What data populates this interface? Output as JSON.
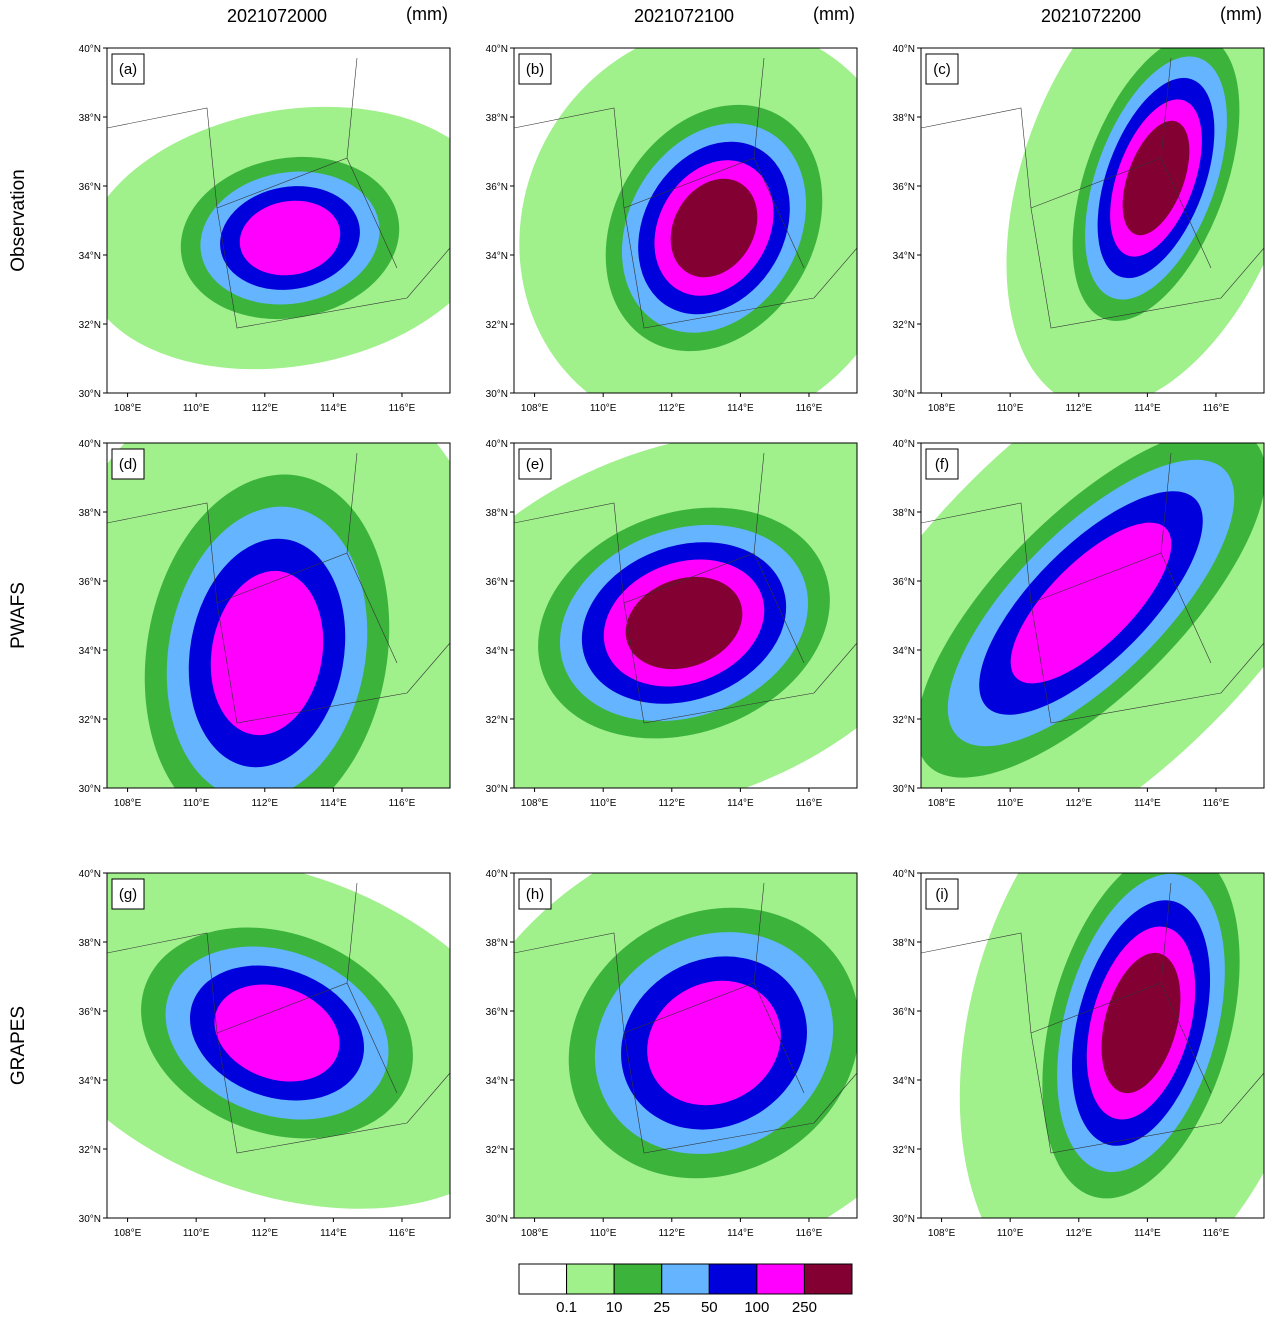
{
  "columns": [
    "2021072000",
    "2021072100",
    "2021072200"
  ],
  "unit": "(mm)",
  "rows": [
    "Observation",
    "PWAFS",
    "GRAPES"
  ],
  "panels": [
    "(a)",
    "(b)",
    "(c)",
    "(d)",
    "(e)",
    "(f)",
    "(g)",
    "(h)",
    "(i)"
  ],
  "lat_range": [
    30,
    40
  ],
  "lon_range": [
    107.4,
    117.4
  ],
  "lat_ticks": [
    {
      "value": 30,
      "label": "30°N"
    },
    {
      "value": 32,
      "label": "32°N"
    },
    {
      "value": 34,
      "label": "34°N"
    },
    {
      "value": 36,
      "label": "36°N"
    },
    {
      "value": 38,
      "label": "38°N"
    },
    {
      "value": 40,
      "label": "40°N"
    }
  ],
  "lon_ticks": [
    {
      "value": 108,
      "label": "108°E"
    },
    {
      "value": 110,
      "label": "110°E"
    },
    {
      "value": 112,
      "label": "112°E"
    },
    {
      "value": 114,
      "label": "114°E"
    },
    {
      "value": 116,
      "label": "116°E"
    }
  ],
  "colorbar": {
    "colors": [
      "#ffffff",
      "#a0f08c",
      "#3cb43c",
      "#64b4ff",
      "#0000dc",
      "#ff00ff",
      "#820032"
    ],
    "labels": [
      "0.1",
      "10",
      "25",
      "50",
      "100",
      "250"
    ]
  }
}
